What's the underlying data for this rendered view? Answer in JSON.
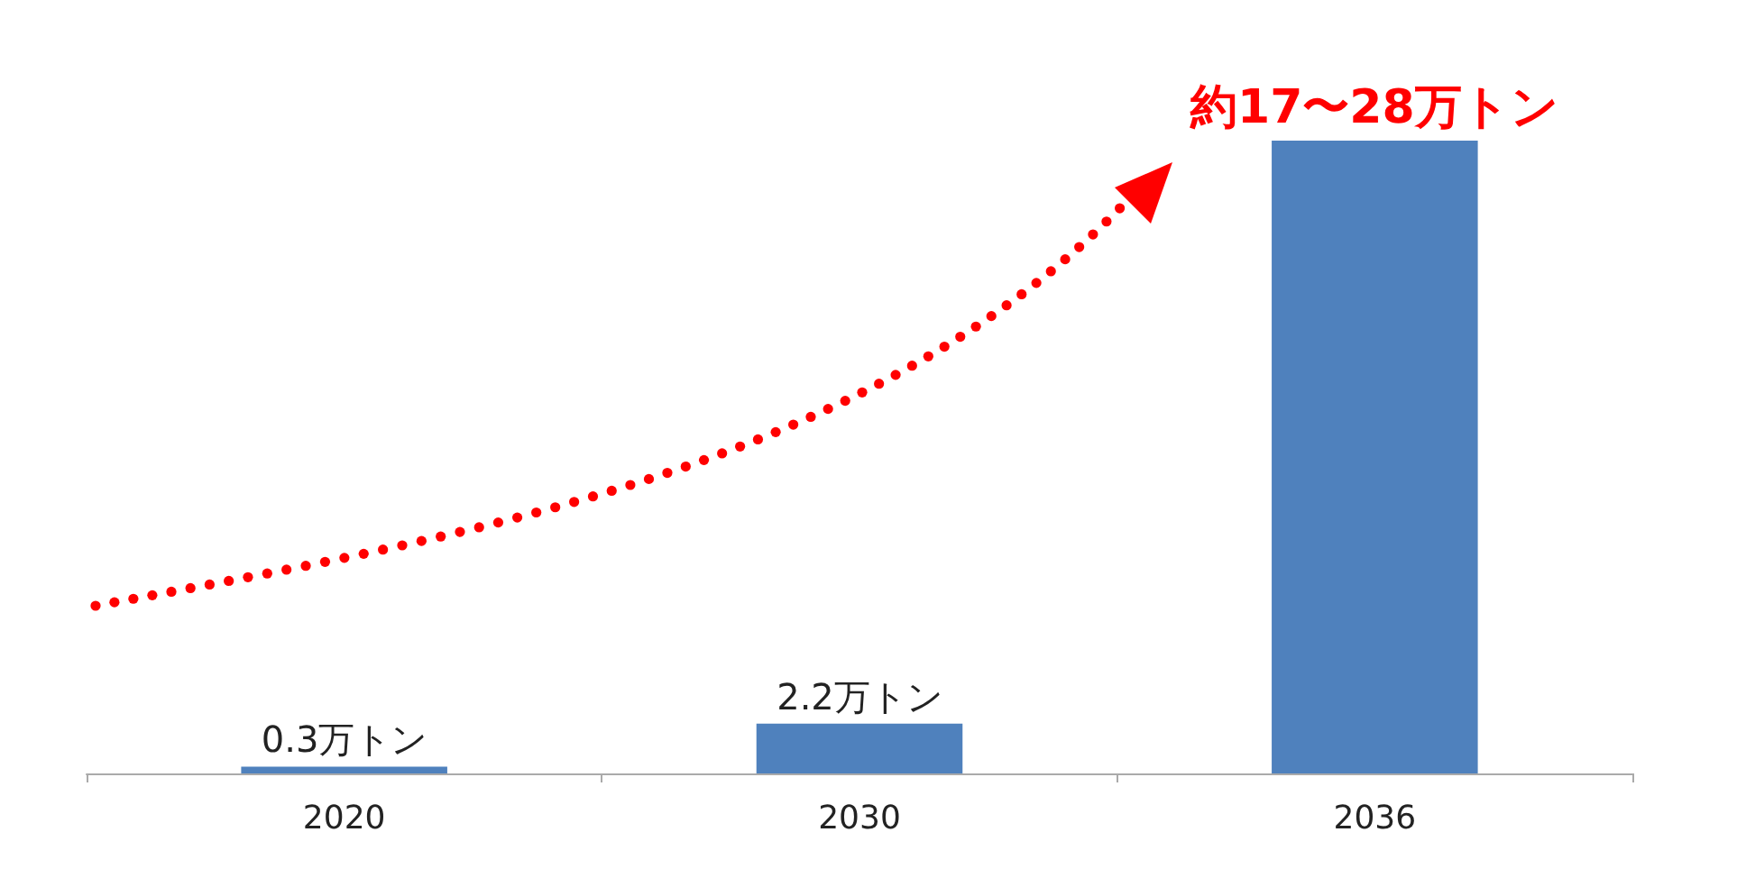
{
  "chart_data": {
    "type": "bar",
    "categories": [
      "2020",
      "2030",
      "2036"
    ],
    "values": [
      0.3,
      2.2,
      28
    ],
    "color": "#4f81bd",
    "value_labels": [
      "0.3万トン",
      "2.2万トン",
      "約17〜28万トン"
    ]
  }
}
